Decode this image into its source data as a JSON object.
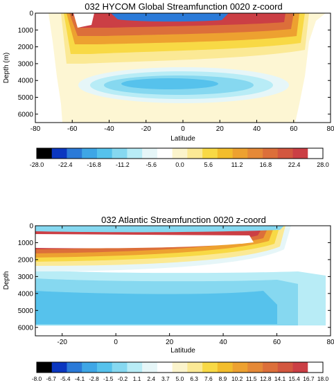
{
  "chart_data": [
    {
      "type": "heatmap",
      "title": "032 HYCOM Global Streamfunction 0020 z-coord",
      "xlabel": "Latitude",
      "ylabel": "Depth (m)",
      "xlim": [
        -80,
        80
      ],
      "ylim": [
        6500,
        0
      ],
      "x_ticks": [
        "-80",
        "-60",
        "-40",
        "-20",
        "0",
        "20",
        "40",
        "60",
        "80"
      ],
      "y_ticks": [
        "0",
        "1000",
        "2000",
        "3000",
        "4000",
        "5000",
        "6000"
      ],
      "colorbar": {
        "min": -28.0,
        "max": 28.0,
        "tick_labels": [
          "-28.0",
          "-22.4",
          "-16.8",
          "-11.2",
          "-5.6",
          "0.0",
          "5.6",
          "11.2",
          "16.8",
          "22.4",
          "28.0"
        ]
      },
      "features": [
        {
          "name": "shallow positive overturning cell",
          "lat_range": [
            -65,
            65
          ],
          "depth_range": [
            0,
            3000
          ],
          "peak_value": 28
        },
        {
          "name": "deep negative cell",
          "lat_range": [
            -55,
            45
          ],
          "depth_range": [
            3000,
            5000
          ],
          "peak_value": -8
        }
      ]
    },
    {
      "type": "heatmap",
      "title": "032 Atlantic Streamfunction 0020 z-coord",
      "xlabel": "Latitude",
      "ylabel": "Depth",
      "xlim": [
        -30,
        80
      ],
      "ylim": [
        6500,
        0
      ],
      "x_ticks": [
        "-20",
        "0",
        "20",
        "40",
        "60",
        "80"
      ],
      "y_ticks": [
        "0",
        "1000",
        "2000",
        "3000",
        "4000",
        "5000",
        "6000"
      ],
      "colorbar": {
        "min": -8.0,
        "max": 18.0,
        "tick_labels": [
          "-8.0",
          "-6.7",
          "-5.4",
          "-4.1",
          "-2.8",
          "-1.5",
          "-0.2",
          "1.1",
          "2.4",
          "3.7",
          "5.0",
          "6.3",
          "7.6",
          "8.9",
          "10.2",
          "11.5",
          "12.8",
          "14.1",
          "15.4",
          "16.7",
          "18.0"
        ]
      },
      "features": [
        {
          "name": "upper overturning cell (AMOC)",
          "lat_range": [
            -30,
            60
          ],
          "depth_range": [
            0,
            2000
          ],
          "peak_value": 18
        },
        {
          "name": "deep negative cell",
          "lat_range": [
            -30,
            65
          ],
          "depth_range": [
            2500,
            5500
          ],
          "peak_value": -4
        }
      ]
    }
  ],
  "palette": [
    "#000000",
    "#0b37c0",
    "#2b7ad8",
    "#3ea6e6",
    "#56c2ec",
    "#86d8f0",
    "#b8ecf6",
    "#e6f6f8",
    "#ffffff",
    "#fbf4cc",
    "#fbe995",
    "#f8d945",
    "#f2bd2c",
    "#eda130",
    "#e58937",
    "#dc6f3a",
    "#d3573f",
    "#cb3f45",
    "#ffffff"
  ]
}
